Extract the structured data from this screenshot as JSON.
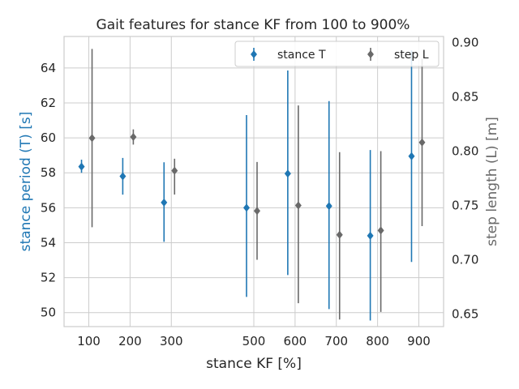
{
  "chart_data": {
    "type": "scatter",
    "title": "Gait features for stance KF from 100 to 900%",
    "xlabel": "stance KF [%]",
    "ylabel_left": "stance period (T) [s]",
    "ylabel_right": "step length (L) [m]",
    "x_ticks": [
      100,
      200,
      300,
      500,
      600,
      700,
      800,
      900
    ],
    "xlim": [
      40,
      960
    ],
    "ylim_left": [
      49.2,
      65.8
    ],
    "ylim_right": [
      0.6385,
      0.9055
    ],
    "y_ticks_left": [
      50,
      52,
      54,
      56,
      58,
      60,
      62,
      64
    ],
    "y_ticks_right": [
      0.65,
      0.7,
      0.75,
      0.8,
      0.85,
      0.9
    ],
    "y_tick_labels_right": [
      "0.65",
      "0.70",
      "0.75",
      "0.80",
      "0.85",
      "0.90"
    ],
    "grid": true,
    "legend_position": "top-right",
    "series": [
      {
        "name": "stance T",
        "axis": "left",
        "color": "#1f77b4",
        "marker": "diamond",
        "x": [
          100,
          200,
          300,
          500,
          600,
          700,
          800,
          900
        ],
        "y": [
          58.35,
          57.8,
          56.3,
          56.0,
          57.95,
          56.1,
          54.4,
          58.95
        ],
        "err_low": [
          58.0,
          56.75,
          54.05,
          50.9,
          52.15,
          50.2,
          49.55,
          52.9
        ],
        "err_high": [
          58.75,
          58.85,
          58.6,
          61.3,
          63.85,
          62.1,
          59.3,
          65.0
        ]
      },
      {
        "name": "step L",
        "axis": "right",
        "color": "#696969",
        "marker": "diamond",
        "x": [
          100,
          200,
          300,
          500,
          600,
          700,
          800,
          900
        ],
        "y": [
          0.812,
          0.813,
          0.782,
          0.745,
          0.75,
          0.723,
          0.727,
          0.808
        ],
        "err_low": [
          0.73,
          0.806,
          0.76,
          0.7,
          0.66,
          0.645,
          0.652,
          0.731
        ],
        "err_high": [
          0.894,
          0.82,
          0.793,
          0.79,
          0.842,
          0.799,
          0.8,
          0.885
        ]
      }
    ]
  }
}
